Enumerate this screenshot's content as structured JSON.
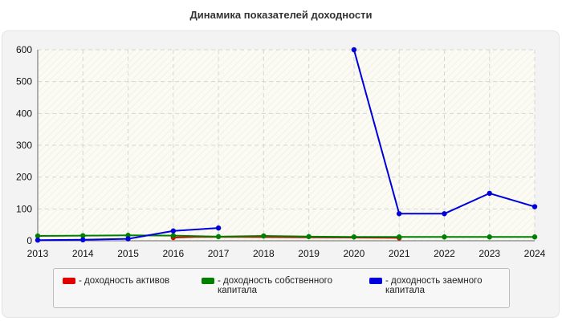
{
  "chart_data": {
    "type": "line",
    "title": "Динамика показателей доходности",
    "xlabel": "",
    "ylabel": "",
    "x": [
      2013,
      2014,
      2015,
      2016,
      2017,
      2018,
      2019,
      2020,
      2021,
      2022,
      2023,
      2024
    ],
    "xlim": [
      2013,
      2024
    ],
    "ylim": [
      0,
      600
    ],
    "yticks": [
      0,
      100,
      200,
      300,
      400,
      500,
      600
    ],
    "grid": true,
    "legend_position": "bottom",
    "series": [
      {
        "name": "- доходность активов",
        "color": "#e00000",
        "points": [
          [
            2016,
            10
          ],
          [
            2016.5,
            12
          ],
          [
            2017.5,
            12
          ],
          [
            2020,
            10
          ],
          [
            2021,
            9
          ]
        ],
        "markers": [
          [
            2016,
            10
          ],
          [
            2021,
            9
          ]
        ]
      },
      {
        "name": "- доходность собственного капитала",
        "color": "#008000",
        "points": [
          [
            2013,
            15
          ],
          [
            2014,
            16
          ],
          [
            2015,
            17
          ],
          [
            2016,
            16
          ],
          [
            2017,
            13
          ],
          [
            2018,
            15
          ],
          [
            2019,
            13
          ],
          [
            2020,
            12
          ],
          [
            2021,
            12
          ],
          [
            2022,
            12
          ],
          [
            2023,
            12
          ],
          [
            2024,
            12
          ]
        ],
        "markers": [
          [
            2013,
            15
          ],
          [
            2014,
            16
          ],
          [
            2015,
            17
          ],
          [
            2016,
            16
          ],
          [
            2017,
            13
          ],
          [
            2018,
            15
          ],
          [
            2019,
            13
          ],
          [
            2020,
            12
          ],
          [
            2021,
            12
          ],
          [
            2022,
            12
          ],
          [
            2023,
            12
          ],
          [
            2024,
            12
          ]
        ]
      },
      {
        "name": "- доходность заемного капитала",
        "color": "#0000dd",
        "points": [
          [
            2013,
            2
          ],
          [
            2014,
            3
          ],
          [
            2015,
            6
          ],
          [
            2016,
            31
          ],
          [
            2017,
            40
          ],
          [
            2020,
            600
          ],
          [
            2021,
            85
          ],
          [
            2022,
            85
          ],
          [
            2023,
            149
          ],
          [
            2024,
            107
          ]
        ],
        "segments": [
          [
            0,
            5
          ],
          [
            5,
            10
          ]
        ],
        "markers": [
          [
            2013,
            2
          ],
          [
            2014,
            3
          ],
          [
            2015,
            6
          ],
          [
            2016,
            31
          ],
          [
            2017,
            40
          ],
          [
            2020,
            600
          ],
          [
            2021,
            85
          ],
          [
            2022,
            85
          ],
          [
            2023,
            149
          ],
          [
            2024,
            107
          ]
        ]
      }
    ]
  }
}
